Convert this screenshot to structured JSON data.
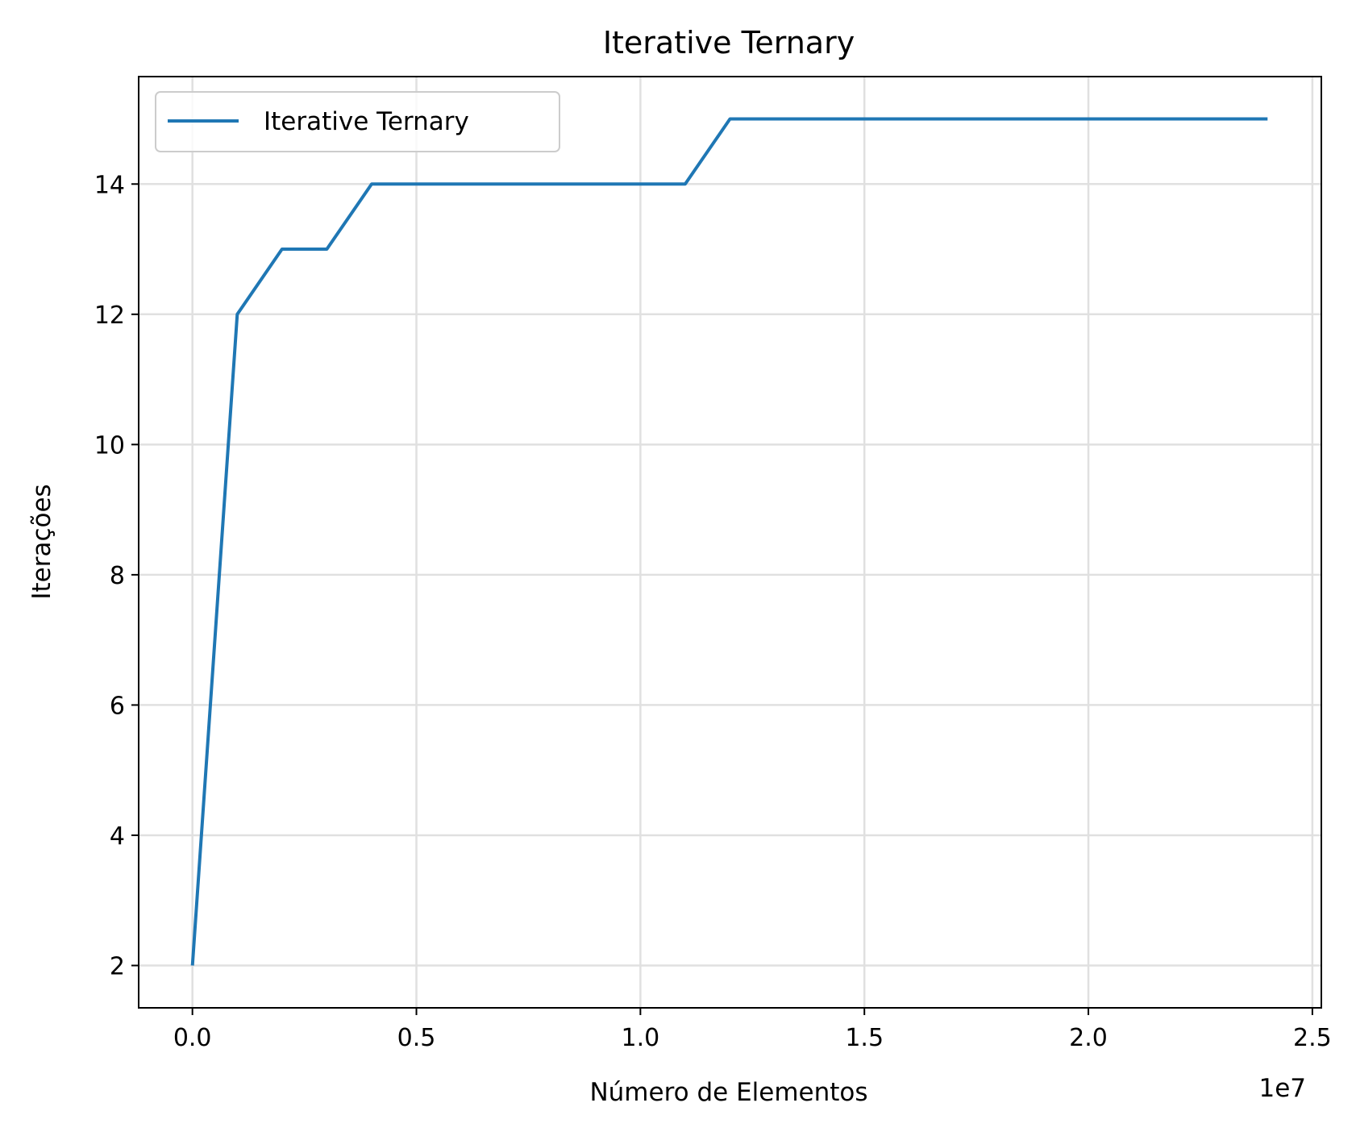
{
  "chart_data": {
    "type": "line",
    "title": "Iterative Ternary",
    "xlabel": "Número de Elementos",
    "ylabel": "Iterações",
    "x_offset_label": "1e7",
    "xlim": [
      -1200000,
      25200000
    ],
    "ylim": [
      1.35,
      15.65
    ],
    "xticks": [
      0,
      5000000,
      10000000,
      15000000,
      20000000,
      25000000
    ],
    "xtick_labels": [
      "0.0",
      "0.5",
      "1.0",
      "1.5",
      "2.0",
      "2.5"
    ],
    "yticks": [
      2,
      4,
      6,
      8,
      10,
      12,
      14
    ],
    "ytick_labels": [
      "2",
      "4",
      "6",
      "8",
      "10",
      "12",
      "14"
    ],
    "grid": true,
    "legend_position": "upper-left",
    "series": [
      {
        "name": "Iterative Ternary",
        "color": "#1f77b4",
        "x": [
          0,
          1000000,
          2000000,
          3000000,
          4000000,
          5000000,
          6000000,
          7000000,
          8000000,
          9000000,
          10000000,
          11000000,
          12000000,
          13000000,
          14000000,
          15000000,
          16000000,
          17000000,
          18000000,
          19000000,
          20000000,
          21000000,
          22000000,
          23000000,
          24000000
        ],
        "y": [
          2,
          12,
          13,
          13,
          14,
          14,
          14,
          14,
          14,
          14,
          14,
          14,
          15,
          15,
          15,
          15,
          15,
          15,
          15,
          15,
          15,
          15,
          15,
          15,
          15
        ]
      }
    ]
  }
}
